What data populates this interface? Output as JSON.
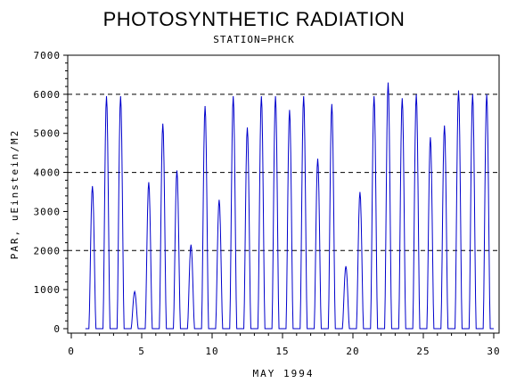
{
  "chart_data": {
    "type": "line",
    "title": "PHOTOSYNTHETIC RADIATION",
    "subtitle": "STATION=PHCK",
    "xlabel": "MAY 1994",
    "ylabel": "PAR, uEinstein/M2",
    "xlim": [
      0,
      30
    ],
    "ylim": [
      0,
      7000
    ],
    "x_ticks": [
      0,
      5,
      10,
      15,
      20,
      25,
      30
    ],
    "y_ticks": [
      0,
      1000,
      2000,
      3000,
      4000,
      5000,
      6000,
      7000
    ],
    "reference_lines": [
      2000,
      4000,
      6000
    ],
    "grid": false,
    "line_color": "#0000cc",
    "samples_per_day": 24,
    "series": [
      {
        "daily_peaks": [
          3650,
          5950,
          5950,
          950,
          3750,
          5250,
          4050,
          2150,
          5700,
          3300,
          5950,
          5150,
          5950,
          5950,
          5600,
          5950,
          4350,
          5750,
          1600,
          3500,
          5950,
          6300,
          5900,
          6000,
          4900,
          5200,
          6100,
          6000,
          6000
        ]
      }
    ]
  }
}
